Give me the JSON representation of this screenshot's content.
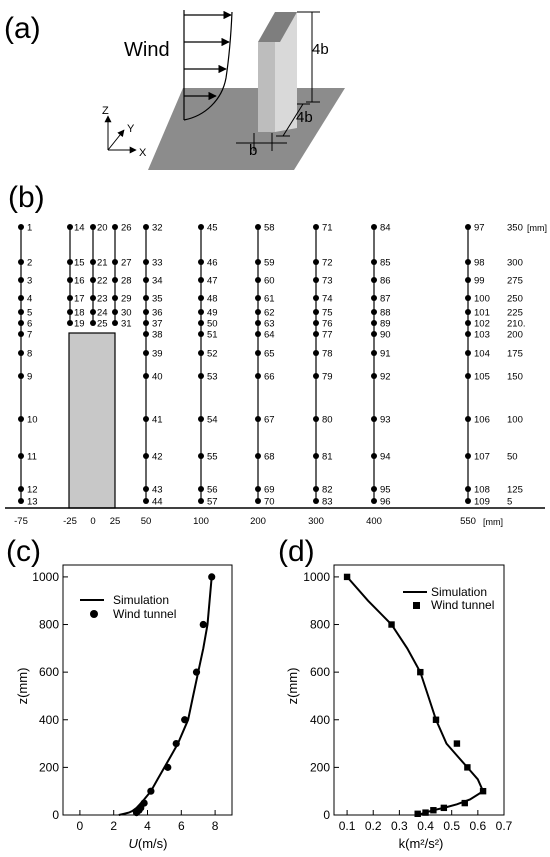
{
  "panel_a": {
    "letter": "(a)",
    "wind_label": "Wind",
    "height_label": "4b",
    "depth_label": "4b",
    "width_label": "b",
    "axes": {
      "z": "Z",
      "y": "Y",
      "x": "X"
    }
  },
  "panel_b": {
    "letter": "(b)",
    "unit_right": "[mm]",
    "unit_bottom": "[mm]",
    "x_labels": [
      "-75",
      "-25",
      "0",
      "25",
      "50",
      "100",
      "200",
      "300",
      "400",
      "550"
    ],
    "z_labels": [
      "350",
      "300",
      "275",
      "250",
      "225",
      "210.",
      "200",
      "175",
      "150",
      "100",
      "50",
      "125",
      "5"
    ],
    "columns": [
      {
        "x": -75,
        "points": [
          "1",
          "2",
          "3",
          "4",
          "5",
          "6",
          "7",
          "8",
          "9",
          "10",
          "11",
          "12",
          "13"
        ]
      },
      {
        "x": -25,
        "points": [
          "14",
          "15",
          "16",
          "17",
          "18",
          "19"
        ]
      },
      {
        "x": 0,
        "points": [
          "20",
          "21",
          "22",
          "23",
          "24",
          "25"
        ]
      },
      {
        "x": 25,
        "points": [
          "26",
          "27",
          "28",
          "29",
          "30",
          "31"
        ]
      },
      {
        "x": 50,
        "points": [
          "32",
          "33",
          "34",
          "35",
          "36",
          "37",
          "38",
          "39",
          "40",
          "41",
          "42",
          "43",
          "44"
        ]
      },
      {
        "x": 100,
        "points": [
          "45",
          "46",
          "47",
          "48",
          "49",
          "50",
          "51",
          "52",
          "53",
          "54",
          "55",
          "56",
          "57"
        ]
      },
      {
        "x": 200,
        "points": [
          "58",
          "59",
          "60",
          "61",
          "62",
          "63",
          "64",
          "65",
          "66",
          "67",
          "68",
          "69",
          "70"
        ]
      },
      {
        "x": 300,
        "points": [
          "71",
          "72",
          "73",
          "74",
          "75",
          "76",
          "77",
          "78",
          "79",
          "80",
          "81",
          "82",
          "83"
        ]
      },
      {
        "x": 400,
        "points": [
          "84",
          "85",
          "86",
          "87",
          "88",
          "89",
          "90",
          "91",
          "92",
          "93",
          "94",
          "95",
          "96"
        ]
      },
      {
        "x": 550,
        "points": [
          "97",
          "98",
          "99",
          "100",
          "101",
          "102",
          "103",
          "104",
          "105",
          "106",
          "107",
          "108",
          "109"
        ]
      }
    ]
  },
  "chart_data": [
    {
      "type": "line",
      "panel": "(c)",
      "title": "",
      "xlabel_italic": "U",
      "xlabel_rest": "(m/s)",
      "ylabel": "z(mm)",
      "xlim": [
        -1,
        9
      ],
      "ylim": [
        0,
        1050
      ],
      "xticks": [
        0,
        2,
        4,
        6,
        8
      ],
      "yticks": [
        0,
        200,
        400,
        600,
        800,
        1000
      ],
      "legend_placement": "top-right",
      "series": [
        {
          "name": "Simulation",
          "kind": "line",
          "x": [
            2.3,
            2.6,
            2.9,
            3.1,
            3.35,
            3.55,
            3.8,
            4.2,
            4.6,
            5.0,
            5.4,
            5.8,
            6.1,
            6.4,
            6.7,
            7.0,
            7.3,
            7.55,
            7.8
          ],
          "y": [
            0,
            5,
            10,
            17,
            30,
            45,
            65,
            100,
            150,
            200,
            250,
            300,
            350,
            400,
            500,
            600,
            700,
            800,
            1000
          ]
        },
        {
          "name": "Wind tunnel",
          "kind": "circle",
          "x": [
            3.35,
            3.5,
            3.6,
            3.8,
            4.2,
            5.2,
            5.7,
            6.2,
            6.9,
            7.3,
            7.8
          ],
          "y": [
            10,
            20,
            30,
            50,
            100,
            200,
            300,
            400,
            600,
            800,
            1000
          ]
        }
      ]
    },
    {
      "type": "line",
      "panel": "(d)",
      "title": "",
      "xlabel": "k(m²/s²)",
      "ylabel": "z(mm)",
      "xlim": [
        0.05,
        0.7
      ],
      "ylim": [
        0,
        1050
      ],
      "xticks": [
        0.1,
        0.2,
        0.3,
        0.4,
        0.5,
        0.6,
        0.7
      ],
      "xtick_labels": [
        "0.1",
        "0.2",
        "0.3",
        "0.4",
        "0.5",
        "0.6",
        "0.7"
      ],
      "yticks": [
        0,
        200,
        400,
        600,
        800,
        1000
      ],
      "legend_placement": "top-right",
      "series": [
        {
          "name": "Simulation",
          "kind": "line",
          "x": [
            0.37,
            0.4,
            0.43,
            0.47,
            0.52,
            0.57,
            0.62,
            0.6,
            0.56,
            0.52,
            0.48,
            0.44,
            0.41,
            0.38,
            0.33,
            0.27,
            0.18,
            0.1
          ],
          "y": [
            0,
            10,
            20,
            30,
            45,
            65,
            100,
            150,
            200,
            250,
            300,
            400,
            500,
            600,
            700,
            800,
            900,
            1000
          ]
        },
        {
          "name": "Wind tunnel",
          "kind": "square",
          "x": [
            0.37,
            0.4,
            0.43,
            0.47,
            0.55,
            0.62,
            0.56,
            0.52,
            0.44,
            0.38,
            0.27,
            0.1
          ],
          "y": [
            5,
            10,
            20,
            30,
            50,
            100,
            200,
            300,
            400,
            600,
            800,
            1000
          ]
        }
      ]
    }
  ]
}
